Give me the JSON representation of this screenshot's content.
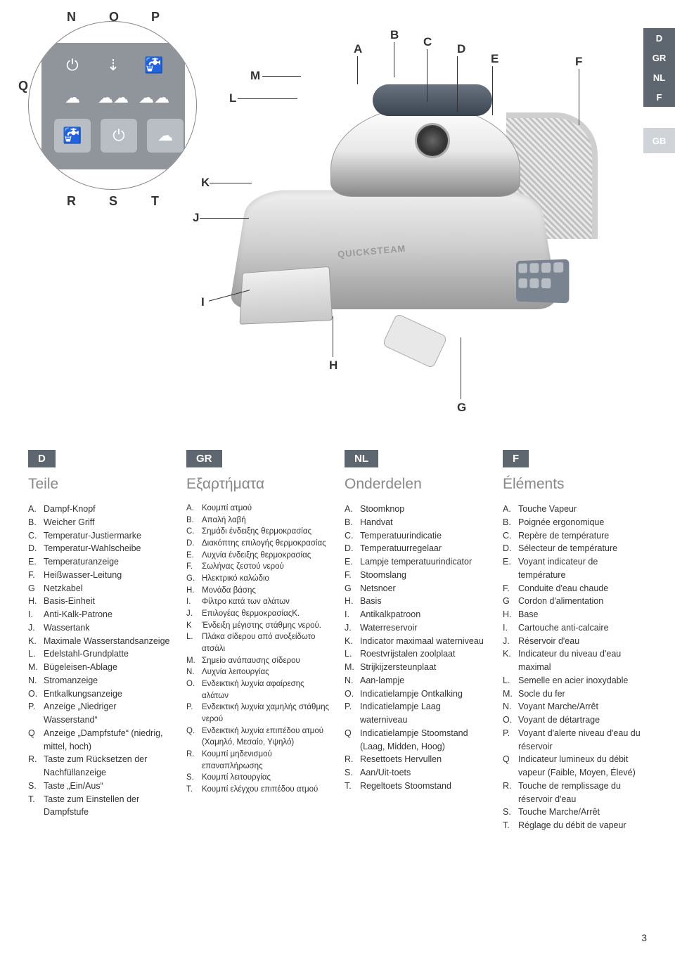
{
  "page_number": "3",
  "brand_text": "QUICKSTEAM",
  "cc_letters": {
    "N": "N",
    "O": "O",
    "P": "P",
    "Q": "Q",
    "R": "R",
    "S": "S",
    "T": "T"
  },
  "iron_letters": [
    "A",
    "B",
    "C",
    "D",
    "E",
    "F",
    "G",
    "H",
    "I",
    "J",
    "K",
    "L",
    "M"
  ],
  "side_tabs": [
    "D",
    "GR",
    "NL",
    "F",
    "GB"
  ],
  "columns": [
    {
      "code": "D",
      "title": "Teile",
      "small": false,
      "items": [
        [
          "A.",
          "Dampf-Knopf"
        ],
        [
          "B.",
          "Weicher Griff"
        ],
        [
          "C.",
          "Temperatur-Justiermarke"
        ],
        [
          "D.",
          "Temperatur-Wahlscheibe"
        ],
        [
          "E.",
          "Temperaturanzeige"
        ],
        [
          "F.",
          "Heißwasser-Leitung"
        ],
        [
          "G",
          "Netzkabel"
        ],
        [
          "H.",
          "Basis-Einheit"
        ],
        [
          "I.",
          "Anti-Kalk-Patrone"
        ],
        [
          "J.",
          "Wassertank"
        ],
        [
          "K.",
          "Maximale Wasserstandsanzeige"
        ],
        [
          "L.",
          "Edelstahl-Grundplatte"
        ],
        [
          "M.",
          "Bügeleisen-Ablage"
        ],
        [
          "N.",
          "Stromanzeige"
        ],
        [
          "O.",
          "Entkalkungsanzeige"
        ],
        [
          "P.",
          "Anzeige „Niedriger Wasserstand“"
        ],
        [
          "Q",
          "Anzeige „Dampfstufe“ (niedrig, mittel, hoch)"
        ],
        [
          "R.",
          "Taste zum Rücksetzen der Nachfüllanzeige"
        ],
        [
          "S.",
          "Taste „Ein/Aus“"
        ],
        [
          "T.",
          "Taste zum Einstellen der Dampfstufe"
        ]
      ]
    },
    {
      "code": "GR",
      "title": "Εξαρτήματα",
      "small": true,
      "items": [
        [
          "A.",
          "Κουμπί ατμού"
        ],
        [
          "B.",
          "Απαλή λαβή"
        ],
        [
          "C.",
          "Σημάδι ένδειξης θερμοκρασίας"
        ],
        [
          "D.",
          "Διακόπτης επιλογής θερμοκρασίας"
        ],
        [
          "E.",
          "Λυχνία ένδειξης θερμοκρασίας"
        ],
        [
          "F.",
          "Σωλήνας ζεστού νερού"
        ],
        [
          "G.",
          "Ηλεκτρικό καλώδιο"
        ],
        [
          "H.",
          "Μονάδα βάσης"
        ],
        [
          "I.",
          "Φίλτρο κατά των αλάτων"
        ],
        [
          "J.",
          "Επιλογέας θερμοκρασίαςK."
        ],
        [
          "K",
          "Ένδειξη μέγιστης στάθμης νερού."
        ],
        [
          "L.",
          "Πλάκα σίδερου από ανοξείδωτο ατσάλι"
        ],
        [
          "M.",
          "Σημείο ανάπαυσης σίδερου"
        ],
        [
          "N.",
          "Λυχνία λειτουργίας"
        ],
        [
          "O.",
          "Ενδεικτική λυχνία αφαίρεσης αλάτων"
        ],
        [
          "P.",
          "Ενδεικτική λυχνία χαμηλής στάθμης νερού"
        ],
        [
          "Q.",
          "Ενδεικτική λυχνία επιπέδου ατμού (Χαμηλό, Μεσαίο, Υψηλό)"
        ],
        [
          "R.",
          "Κουμπί μηδενισμού επαναπλήρωσης"
        ],
        [
          "S.",
          "Κουμπί λειτουργίας"
        ],
        [
          "T.",
          "Κουμπί ελέγχου επιπέδου ατμού"
        ]
      ]
    },
    {
      "code": "NL",
      "title": "Onderdelen",
      "small": false,
      "items": [
        [
          "A.",
          "Stoomknop"
        ],
        [
          "B.",
          "Handvat"
        ],
        [
          "C.",
          "Temperatuurindicatie"
        ],
        [
          "D.",
          "Temperatuurregelaar"
        ],
        [
          "E.",
          "Lampje temperatuurindicator"
        ],
        [
          "F.",
          "Stoomslang"
        ],
        [
          "G",
          "Netsnoer"
        ],
        [
          "H.",
          "Basis"
        ],
        [
          "I.",
          "Antikalkpatroon"
        ],
        [
          "J.",
          "Waterreservoir"
        ],
        [
          "K.",
          "Indicator maximaal waterniveau"
        ],
        [
          "L.",
          "Roestvrijstalen zoolplaat"
        ],
        [
          "M.",
          "Strijkijzersteunplaat"
        ],
        [
          "N.",
          "Aan-lampje"
        ],
        [
          "O.",
          "Indicatielampje Ontkalking"
        ],
        [
          "P.",
          "Indicatielampje Laag waterniveau"
        ],
        [
          "Q",
          "Indicatielampje Stoomstand (Laag, Midden, Hoog)"
        ],
        [
          "R.",
          "Resettoets Hervullen"
        ],
        [
          "S.",
          "Aan/Uit-toets"
        ],
        [
          "T.",
          "Regeltoets Stoomstand"
        ]
      ]
    },
    {
      "code": "F",
      "title": "Éléments",
      "small": false,
      "items": [
        [
          "A.",
          "Touche Vapeur"
        ],
        [
          "B.",
          "Poignée ergonomique"
        ],
        [
          "C.",
          "Repère de température"
        ],
        [
          "D.",
          "Sélecteur de température"
        ],
        [
          "E.",
          "Voyant indicateur de température"
        ],
        [
          "F.",
          "Conduite d'eau chaude"
        ],
        [
          "G",
          "Cordon d'alimentation"
        ],
        [
          "H.",
          "Base"
        ],
        [
          "I.",
          "Cartouche anti-calcaire"
        ],
        [
          "J.",
          "Réservoir d'eau"
        ],
        [
          "K.",
          "Indicateur du niveau d'eau maximal"
        ],
        [
          "L.",
          "Semelle en acier inoxydable"
        ],
        [
          "M.",
          "Socle du fer"
        ],
        [
          "N.",
          "Voyant Marche/Arrêt"
        ],
        [
          "O.",
          "Voyant de détartrage"
        ],
        [
          "P.",
          "Voyant d'alerte niveau d'eau du réservoir"
        ],
        [
          "Q",
          "Indicateur lumineux du débit vapeur (Faible, Moyen, Élevé)"
        ],
        [
          "R.",
          "Touche de remplissage du réservoir d'eau"
        ],
        [
          "S.",
          "Touche Marche/Arrêt"
        ],
        [
          "T.",
          "Réglage du débit de vapeur"
        ]
      ]
    }
  ],
  "colors": {
    "panel_bg": "#5e6670",
    "title_gray": "#888888"
  }
}
